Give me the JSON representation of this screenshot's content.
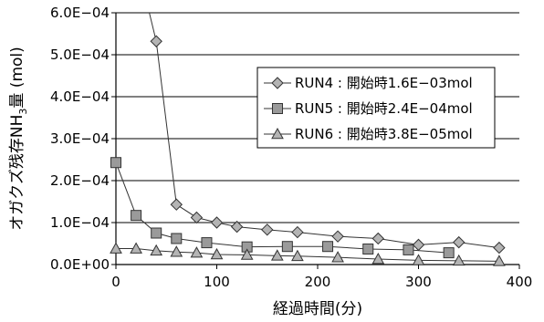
{
  "chart_data": {
    "type": "line",
    "xlabel": "経過時間(分)",
    "ylabel": {
      "prefix": "オガクズ残存NH",
      "sub": "3",
      "suffix": "量 (mol)"
    },
    "xlim": [
      0,
      400
    ],
    "ylim": [
      0,
      0.0006
    ],
    "x_ticks": [
      {
        "value": 0,
        "label": "0"
      },
      {
        "value": 100,
        "label": "100"
      },
      {
        "value": 200,
        "label": "200"
      },
      {
        "value": 300,
        "label": "300"
      },
      {
        "value": 400,
        "label": "400"
      }
    ],
    "y_ticks": [
      {
        "value": 0,
        "label": "0.0E+00"
      },
      {
        "value": 0.0001,
        "label": "1.0E−04"
      },
      {
        "value": 0.0002,
        "label": "2.0E−04"
      },
      {
        "value": 0.0003,
        "label": "3.0E−04"
      },
      {
        "value": 0.0004,
        "label": "4.0E−04"
      },
      {
        "value": 0.0005,
        "label": "5.0E−04"
      },
      {
        "value": 0.0006,
        "label": "6.0E−04"
      }
    ],
    "grid": {
      "horizontal": true,
      "vertical": false
    },
    "legend_position": "upper-right",
    "series": [
      {
        "name": "RUN4 : 開始時1.6E−03mol",
        "marker": "diamond",
        "color": "#333333",
        "fill": "#b4b4b4",
        "x": [
          20,
          40,
          60,
          80,
          100,
          120,
          150,
          180,
          220,
          260,
          300,
          340,
          380
        ],
        "y": [
          0.00073,
          0.000532,
          0.000143,
          0.000112,
          0.0001,
          9e-05,
          8.3e-05,
          7.7e-05,
          6.7e-05,
          6.2e-05,
          4.7e-05,
          5.3e-05,
          4e-05
        ]
      },
      {
        "name": "RUN5 : 開始時2.4E−04mol",
        "marker": "square",
        "color": "#333333",
        "fill": "#9a9a9a",
        "x": [
          0,
          20,
          40,
          60,
          90,
          130,
          170,
          210,
          250,
          290,
          330
        ],
        "y": [
          0.000243,
          0.000117,
          7.5e-05,
          6.2e-05,
          5.2e-05,
          4.2e-05,
          4.3e-05,
          4.3e-05,
          3.7e-05,
          3.5e-05,
          2.8e-05
        ]
      },
      {
        "name": "RUN6 : 開始時3.8E−05mol",
        "marker": "triangle",
        "color": "#333333",
        "fill": "#b4b4b4",
        "x": [
          0,
          20,
          40,
          60,
          80,
          100,
          130,
          160,
          180,
          220,
          260,
          300,
          340,
          380
        ],
        "y": [
          3.8e-05,
          3.8e-05,
          3.3e-05,
          3e-05,
          2.8e-05,
          2.4e-05,
          2.3e-05,
          2.1e-05,
          2e-05,
          1.7e-05,
          1.3e-05,
          1e-05,
          9e-06,
          8e-06
        ]
      }
    ]
  }
}
